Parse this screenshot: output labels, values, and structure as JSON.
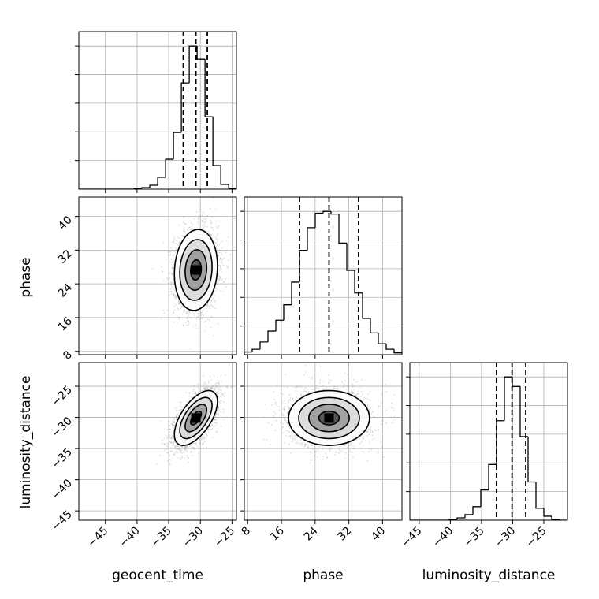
{
  "chart_data": {
    "type": "corner",
    "grid": true,
    "parameters": [
      "geocent_time",
      "phase",
      "luminosity_distance"
    ],
    "ranges": {
      "geocent_time": [
        -49.2,
        -24.3
      ],
      "phase": [
        7.2,
        44.6
      ],
      "luminosity_distance": [
        -46.5,
        -21.2
      ]
    },
    "ticks": {
      "geocent_time": [
        -45,
        -40,
        -35,
        -30,
        -25
      ],
      "phase": [
        8,
        16,
        24,
        32,
        40
      ],
      "luminosity_distance": [
        -45,
        -40,
        -35,
        -30,
        -25
      ]
    },
    "tick_labels": {
      "geocent_time": [
        "−45",
        "−40",
        "−35",
        "−30",
        "−25"
      ],
      "phase": [
        "8",
        "16",
        "24",
        "32",
        "40"
      ],
      "luminosity_distance": [
        "−45",
        "−40",
        "−35",
        "−30",
        "−25"
      ]
    },
    "axis_labels": {
      "geocent_time": "geocent_time",
      "phase": "phase",
      "luminosity_distance": "luminosity_distance"
    },
    "histograms": [
      {
        "parameter": "geocent_time",
        "bin_edges": [
          -49.2,
          -47.954,
          -46.708,
          -45.462,
          -44.216,
          -42.97,
          -41.724,
          -40.478,
          -39.232,
          -37.986,
          -36.74,
          -35.494,
          -34.248,
          -33.002,
          -31.756,
          -30.51,
          -29.264,
          -28.018,
          -26.772,
          -25.526,
          -24.28
        ],
        "counts": [
          0,
          0,
          0,
          0,
          0,
          0,
          0,
          1,
          2,
          5,
          15,
          38,
          72,
          135,
          182,
          165,
          92,
          30,
          6,
          1
        ],
        "quantiles": [
          -32.7,
          -30.7,
          -28.9
        ]
      },
      {
        "parameter": "phase",
        "bin_edges": [
          7.2,
          9.07,
          10.94,
          12.81,
          14.68,
          16.55,
          18.42,
          20.29,
          22.16,
          24.03,
          25.9,
          27.77,
          29.64,
          31.51,
          33.38,
          35.25,
          37.12,
          38.99,
          40.86,
          42.73,
          44.6
        ],
        "counts": [
          3,
          6,
          14,
          26,
          38,
          55,
          80,
          115,
          140,
          156,
          158,
          155,
          123,
          93,
          68,
          40,
          24,
          12,
          6,
          2
        ],
        "quantiles": [
          20.3,
          27.3,
          34.3
        ]
      },
      {
        "parameter": "luminosity_distance",
        "bin_edges": [
          -46.5,
          -45.235,
          -43.97,
          -42.705,
          -41.44,
          -40.175,
          -38.91,
          -37.645,
          -36.38,
          -35.115,
          -33.85,
          -32.585,
          -31.32,
          -30.055,
          -28.79,
          -27.525,
          -26.26,
          -24.995,
          -23.73,
          -22.465,
          -21.2
        ],
        "counts": [
          0,
          0,
          0,
          0,
          0,
          1,
          3,
          7,
          17,
          38,
          70,
          125,
          180,
          168,
          105,
          48,
          15,
          5,
          1,
          0
        ],
        "quantiles": [
          -32.6,
          -30.1,
          -27.9
        ]
      }
    ],
    "scatter_panels": [
      {
        "x": "geocent_time",
        "y": "phase",
        "center": [
          -30.7,
          27.3
        ],
        "sd": [
          1.7,
          4.8
        ],
        "correlation": 0.1,
        "points": 3000
      },
      {
        "x": "geocent_time",
        "y": "luminosity_distance",
        "center": [
          -30.7,
          -30.1
        ],
        "sd": [
          1.7,
          2.2
        ],
        "correlation": 0.6,
        "points": 3000
      },
      {
        "x": "phase",
        "y": "luminosity_distance",
        "center": [
          27.3,
          -30.1
        ],
        "sd": [
          4.8,
          2.2
        ],
        "correlation": 0.0,
        "points": 3000
      }
    ],
    "contour_levels_sigma": [
      0.5,
      1.0,
      1.5,
      2.0
    ],
    "colors": {
      "line": "#000000",
      "grid": "#b0b0b0",
      "scatter": "#808080",
      "density_light": "#eeeeee",
      "density_dark": "#000000",
      "background": "#ffffff"
    }
  }
}
